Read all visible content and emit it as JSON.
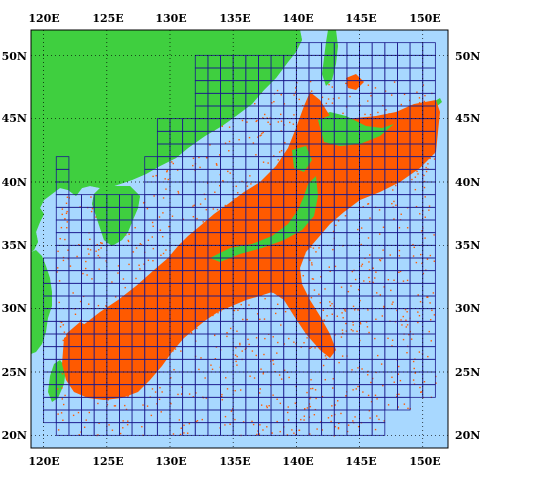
{
  "map": {
    "lon_labels": [
      "120E",
      "125E",
      "130E",
      "135E",
      "140E",
      "145E",
      "150E"
    ],
    "lat_labels": [
      "50N",
      "45N",
      "40N",
      "35N",
      "30N",
      "25N",
      "20N"
    ],
    "lon_range": [
      119,
      152
    ],
    "lat_range": [
      19,
      52
    ],
    "lon_ticks": [
      120,
      125,
      130,
      135,
      140,
      145,
      150
    ],
    "lat_ticks": [
      50,
      45,
      40,
      35,
      30,
      25,
      20
    ],
    "grid_style": "dotted",
    "cell_size_deg": 1,
    "colors": {
      "ocean": "#a8d8ff",
      "land": "#3fcf3f",
      "observations": "#ff5a00",
      "grid_cells": "#1a1a8c",
      "graticule": "#000000",
      "frame": "#000000"
    },
    "legend": "none"
  }
}
